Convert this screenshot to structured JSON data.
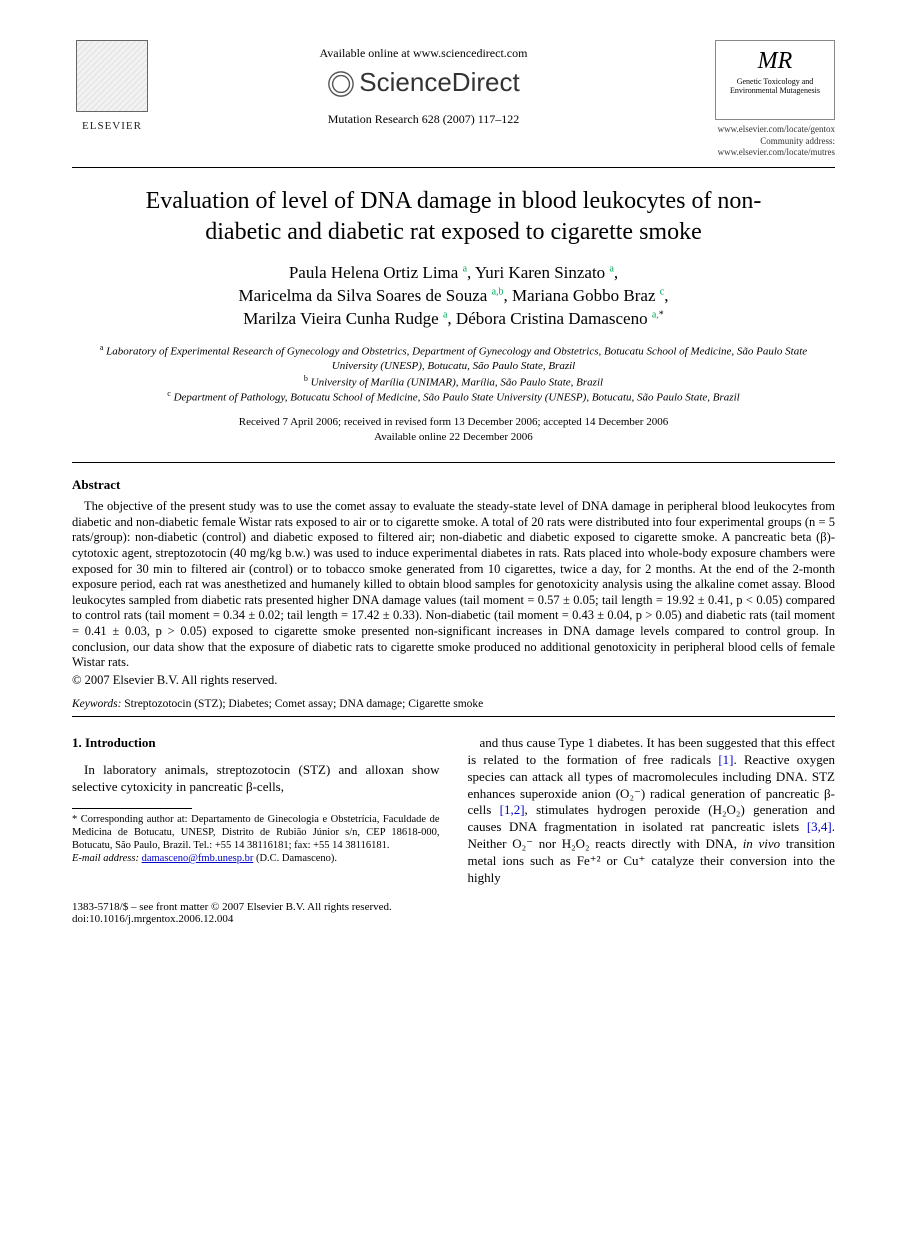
{
  "header": {
    "publisher": "ELSEVIER",
    "available_online": "Available online at www.sciencedirect.com",
    "platform": "ScienceDirect",
    "journal_ref": "Mutation Research 628 (2007) 117–122",
    "journal_box_title": "MR",
    "journal_box_sub": "Genetic Toxicology and Environmental Mutagenesis",
    "url1": "www.elsevier.com/locate/gentox",
    "url2_label": "Community address:",
    "url2": "www.elsevier.com/locate/mutres"
  },
  "title": "Evaluation of level of DNA damage in blood leukocytes of non-diabetic and diabetic rat exposed to cigarette smoke",
  "authors_html": "Paula Helena Ortiz Lima <sup class='sup'>a</sup>, Yuri Karen Sinzato <sup class='sup'>a</sup>,<br>Maricelma da Silva Soares de Souza <sup class='sup'>a,b</sup>, Mariana Gobbo Braz <sup class='sup'>c</sup>,<br>Marilza Vieira Cunha Rudge <sup class='sup'>a</sup>, Débora Cristina Damasceno <sup class='sup'>a,</sup><sup class='sup-star'>*</sup>",
  "affiliations": {
    "a": "Laboratory of Experimental Research of Gynecology and Obstetrics, Department of Gynecology and Obstetrics, Botucatu School of Medicine, São Paulo State University (UNESP), Botucatu, São Paulo State, Brazil",
    "b": "University of Marília (UNIMAR), Marília, São Paulo State, Brazil",
    "c": "Department of Pathology, Botucatu School of Medicine, São Paulo State University (UNESP), Botucatu, São Paulo State, Brazil"
  },
  "dates": {
    "line1": "Received 7 April 2006; received in revised form 13 December 2006; accepted 14 December 2006",
    "line2": "Available online 22 December 2006"
  },
  "abstract": {
    "heading": "Abstract",
    "body": "The objective of the present study was to use the comet assay to evaluate the steady-state level of DNA damage in peripheral blood leukocytes from diabetic and non-diabetic female Wistar rats exposed to air or to cigarette smoke. A total of 20 rats were distributed into four experimental groups (n = 5 rats/group): non-diabetic (control) and diabetic exposed to filtered air; non-diabetic and diabetic exposed to cigarette smoke. A pancreatic beta (β)-cytotoxic agent, streptozotocin (40 mg/kg b.w.) was used to induce experimental diabetes in rats. Rats placed into whole-body exposure chambers were exposed for 30 min to filtered air (control) or to tobacco smoke generated from 10 cigarettes, twice a day, for 2 months. At the end of the 2-month exposure period, each rat was anesthetized and humanely killed to obtain blood samples for genotoxicity analysis using the alkaline comet assay. Blood leukocytes sampled from diabetic rats presented higher DNA damage values (tail moment = 0.57 ± 0.05; tail length = 19.92 ± 0.41, p < 0.05) compared to control rats (tail moment = 0.34 ± 0.02; tail length = 17.42 ± 0.33). Non-diabetic (tail moment = 0.43 ± 0.04, p > 0.05) and diabetic rats (tail moment = 0.41 ± 0.03, p > 0.05) exposed to cigarette smoke presented non-significant increases in DNA damage levels compared to control group. In conclusion, our data show that the exposure of diabetic rats to cigarette smoke produced no additional genotoxicity in peripheral blood cells of female Wistar rats.",
    "copyright": "© 2007 Elsevier B.V. All rights reserved."
  },
  "keywords": {
    "label": "Keywords:",
    "text": "Streptozotocin (STZ); Diabetes; Comet assay; DNA damage; Cigarette smoke"
  },
  "intro": {
    "heading": "1. Introduction",
    "left_para": "In laboratory animals, streptozotocin (STZ) and alloxan show selective cytoxicity in pancreatic β-cells,",
    "right_para": "and thus cause Type 1 diabetes. It has been suggested that this effect is related to the formation of free radicals [1]. Reactive oxygen species can attack all types of macromolecules including DNA. STZ enhances superoxide anion (O₂⁻) radical generation of pancreatic β-cells [1,2], stimulates hydrogen peroxide (H₂O₂) generation and causes DNA fragmentation in isolated rat pancreatic islets [3,4]. Neither O₂⁻ nor H₂O₂ reacts directly with DNA, in vivo transition metal ions such as Fe⁺² or Cu⁺ catalyze their conversion into the highly"
  },
  "footnote": {
    "corr_label": "* Corresponding author at:",
    "corr_text": "Departamento de Ginecologia e Obstetrícia, Faculdade de Medicina de Botucatu, UNESP, Distrito de Rubião Júnior s/n, CEP 18618-000, Botucatu, São Paulo, Brazil. Tel.: +55 14 38116181; fax: +55 14 38116181.",
    "email_label": "E-mail address:",
    "email": "damasceno@fmb.unesp.br",
    "email_author": "(D.C. Damasceno)."
  },
  "bottom": {
    "issn": "1383-5718/$ – see front matter © 2007 Elsevier B.V. All rights reserved.",
    "doi": "doi:10.1016/j.mrgentox.2006.12.004"
  },
  "colors": {
    "link": "#0000cc",
    "sup_affil": "#009955"
  }
}
